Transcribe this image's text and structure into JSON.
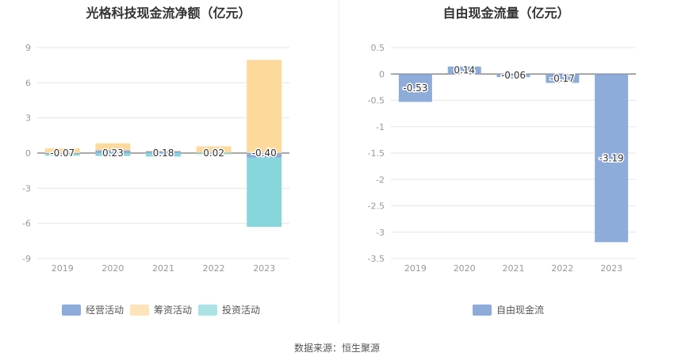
{
  "source": "数据来源：恒生聚源",
  "chart_data": [
    {
      "type": "bar",
      "stacked": true,
      "title": "光格科技现金流净额（亿元）",
      "categories": [
        "2019",
        "2020",
        "2021",
        "2022",
        "2023"
      ],
      "ylim": [
        -9,
        9
      ],
      "yticks": [
        9,
        6,
        3,
        0,
        -3,
        -6,
        -9
      ],
      "series": [
        {
          "name": "经营活动",
          "color": "#8eacd9",
          "values": [
            -0.07,
            0.23,
            0.18,
            0.02,
            -0.4
          ]
        },
        {
          "name": "筹资活动",
          "color": "#fdd99c",
          "values": [
            0.4,
            0.6,
            0.0,
            0.55,
            7.95
          ]
        },
        {
          "name": "投资活动",
          "color": "#87d6dc",
          "values": [
            -0.15,
            -0.25,
            -0.3,
            -0.1,
            -5.9
          ]
        }
      ],
      "labels": [
        "-0.07",
        "0.23",
        "0.18",
        "0.02",
        "-0.40"
      ],
      "legend": "bottom",
      "grid": true
    },
    {
      "type": "bar",
      "title": "自由现金流量（亿元）",
      "categories": [
        "2019",
        "2020",
        "2021",
        "2022",
        "2023"
      ],
      "ylim": [
        -3.5,
        0.5
      ],
      "yticks": [
        0.5,
        0,
        -0.5,
        -1,
        -1.5,
        -2,
        -2.5,
        -3,
        -3.5
      ],
      "series": [
        {
          "name": "自由现金流",
          "color": "#8eacd9",
          "values": [
            -0.53,
            0.14,
            -0.06,
            -0.17,
            -3.19
          ]
        }
      ],
      "labels": [
        "-0.53",
        "0.14",
        "-0.06",
        "-0.17",
        "-3.19"
      ],
      "legend": "bottom",
      "grid": true
    }
  ]
}
